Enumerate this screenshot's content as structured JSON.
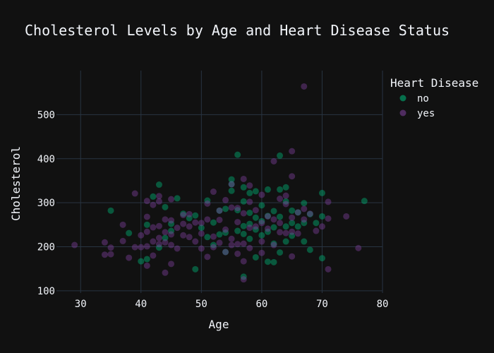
{
  "chart_data": {
    "type": "scatter",
    "title": "Cholesterol Levels by Age and Heart Disease Status",
    "xlabel": "Age",
    "ylabel": "Cholesterol",
    "xlim": [
      26,
      80
    ],
    "ylim": [
      95,
      600
    ],
    "x_ticks": [
      30,
      40,
      50,
      60,
      70,
      80
    ],
    "y_ticks": [
      100,
      200,
      300,
      400,
      500
    ],
    "grid": true,
    "legend": {
      "title": "Heart Disease",
      "placement": "top-right"
    },
    "background": "#111111",
    "grid_color": "#283442",
    "series": [
      {
        "name": "no",
        "color": "#00b074",
        "points": [
          [
            35,
            282
          ],
          [
            38,
            231
          ],
          [
            40,
            167
          ],
          [
            41,
            172
          ],
          [
            41,
            250
          ],
          [
            42,
            314
          ],
          [
            43,
            341
          ],
          [
            43,
            198
          ],
          [
            44,
            290
          ],
          [
            44,
            220
          ],
          [
            45,
            236
          ],
          [
            45,
            252
          ],
          [
            46,
            310
          ],
          [
            47,
            275
          ],
          [
            48,
            265
          ],
          [
            49,
            149
          ],
          [
            49,
            271
          ],
          [
            50,
            243
          ],
          [
            51,
            305
          ],
          [
            51,
            222
          ],
          [
            52,
            204
          ],
          [
            52,
            255
          ],
          [
            53,
            282
          ],
          [
            53,
            228
          ],
          [
            54,
            286
          ],
          [
            54,
            232
          ],
          [
            54,
            188
          ],
          [
            55,
            327
          ],
          [
            55,
            342
          ],
          [
            55,
            353
          ],
          [
            56,
            409
          ],
          [
            56,
            283
          ],
          [
            56,
            236
          ],
          [
            57,
            303
          ],
          [
            57,
            335
          ],
          [
            57,
            247
          ],
          [
            57,
            229
          ],
          [
            57,
            132
          ],
          [
            58,
            322
          ],
          [
            58,
            277
          ],
          [
            58,
            218
          ],
          [
            58,
            252
          ],
          [
            59,
            326
          ],
          [
            59,
            266
          ],
          [
            59,
            239
          ],
          [
            59,
            176
          ],
          [
            60,
            294
          ],
          [
            60,
            258
          ],
          [
            60,
            226
          ],
          [
            61,
            330
          ],
          [
            61,
            270
          ],
          [
            61,
            234
          ],
          [
            61,
            166
          ],
          [
            62,
            281
          ],
          [
            62,
            244
          ],
          [
            62,
            207
          ],
          [
            62,
            165
          ],
          [
            63,
            407
          ],
          [
            63,
            330
          ],
          [
            63,
            268
          ],
          [
            63,
            187
          ],
          [
            64,
            335
          ],
          [
            64,
            303
          ],
          [
            64,
            246
          ],
          [
            64,
            212
          ],
          [
            65,
            282
          ],
          [
            65,
            254
          ],
          [
            65,
            225
          ],
          [
            66,
            278
          ],
          [
            66,
            246
          ],
          [
            67,
            299
          ],
          [
            67,
            254
          ],
          [
            67,
            212
          ],
          [
            68,
            274
          ],
          [
            68,
            193
          ],
          [
            69,
            254
          ],
          [
            70,
            322
          ],
          [
            70,
            269
          ],
          [
            70,
            174
          ],
          [
            77,
            304
          ]
        ]
      },
      {
        "name": "yes",
        "color": "#7a3f96",
        "points": [
          [
            29,
            204
          ],
          [
            34,
            210
          ],
          [
            34,
            182
          ],
          [
            35,
            198
          ],
          [
            35,
            183
          ],
          [
            37,
            250
          ],
          [
            37,
            213
          ],
          [
            38,
            175
          ],
          [
            39,
            321
          ],
          [
            39,
            199
          ],
          [
            40,
            226
          ],
          [
            40,
            199
          ],
          [
            41,
            304
          ],
          [
            41,
            268
          ],
          [
            41,
            234
          ],
          [
            41,
            201
          ],
          [
            41,
            157
          ],
          [
            42,
            295
          ],
          [
            42,
            244
          ],
          [
            42,
            212
          ],
          [
            42,
            180
          ],
          [
            43,
            315
          ],
          [
            43,
            303
          ],
          [
            43,
            247
          ],
          [
            43,
            220
          ],
          [
            43,
            206
          ],
          [
            44,
            262
          ],
          [
            44,
            233
          ],
          [
            44,
            210
          ],
          [
            44,
            141
          ],
          [
            45,
            308
          ],
          [
            45,
            260
          ],
          [
            45,
            228
          ],
          [
            45,
            204
          ],
          [
            45,
            161
          ],
          [
            46,
            243
          ],
          [
            46,
            196
          ],
          [
            47,
            272
          ],
          [
            47,
            252
          ],
          [
            47,
            226
          ],
          [
            48,
            274
          ],
          [
            48,
            246
          ],
          [
            48,
            222
          ],
          [
            49,
            255
          ],
          [
            49,
            212
          ],
          [
            50,
            254
          ],
          [
            50,
            230
          ],
          [
            50,
            196
          ],
          [
            51,
            298
          ],
          [
            51,
            262
          ],
          [
            51,
            177
          ],
          [
            52,
            325
          ],
          [
            52,
            223
          ],
          [
            52,
            199
          ],
          [
            53,
            282
          ],
          [
            53,
            261
          ],
          [
            53,
            209
          ],
          [
            54,
            306
          ],
          [
            54,
            239
          ],
          [
            54,
            188
          ],
          [
            55,
            342
          ],
          [
            55,
            289
          ],
          [
            55,
            218
          ],
          [
            55,
            204
          ],
          [
            56,
            288
          ],
          [
            56,
            256
          ],
          [
            56,
            206
          ],
          [
            56,
            184
          ],
          [
            57,
            354
          ],
          [
            57,
            276
          ],
          [
            57,
            207
          ],
          [
            57,
            167
          ],
          [
            57,
            126
          ],
          [
            58,
            339
          ],
          [
            58,
            302
          ],
          [
            58,
            243
          ],
          [
            58,
            197
          ],
          [
            59,
            283
          ],
          [
            59,
            246
          ],
          [
            60,
            318
          ],
          [
            60,
            254
          ],
          [
            60,
            212
          ],
          [
            60,
            186
          ],
          [
            61,
            269
          ],
          [
            61,
            241
          ],
          [
            62,
            394
          ],
          [
            62,
            262
          ],
          [
            62,
            204
          ],
          [
            63,
            309
          ],
          [
            63,
            254
          ],
          [
            63,
            233
          ],
          [
            64,
            316
          ],
          [
            64,
            297
          ],
          [
            64,
            231
          ],
          [
            65,
            417
          ],
          [
            65,
            360
          ],
          [
            65,
            266
          ],
          [
            65,
            234
          ],
          [
            65,
            178
          ],
          [
            66,
            278
          ],
          [
            66,
            230
          ],
          [
            67,
            564
          ],
          [
            67,
            286
          ],
          [
            67,
            262
          ],
          [
            68,
            275
          ],
          [
            69,
            236
          ],
          [
            70,
            246
          ],
          [
            71,
            302
          ],
          [
            71,
            264
          ],
          [
            71,
            149
          ],
          [
            74,
            269
          ],
          [
            76,
            197
          ]
        ]
      }
    ]
  }
}
